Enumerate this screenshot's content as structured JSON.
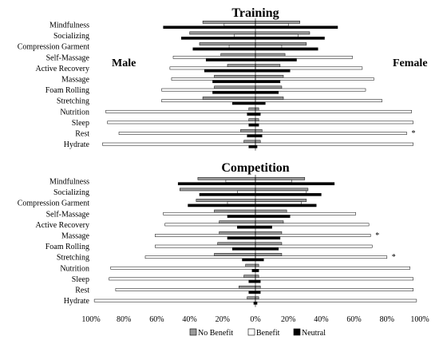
{
  "legend": {
    "no_benefit": "No Benefit",
    "benefit": "Benefit",
    "neutral": "Neutral"
  },
  "colors": {
    "no_benefit": "#9a9a9a",
    "benefit": "#ffffff",
    "neutral": "#000000",
    "outline": "#000000"
  },
  "chart_data": [
    {
      "type": "bar",
      "orientation": "horizontal-butterfly",
      "title": "Training",
      "left_label": "Male",
      "right_label": "Female",
      "categories": [
        "Mindfulness",
        "Socializing",
        "Compression Garment",
        "Self-Massage",
        "Active Recovery",
        "Massage",
        "Foam Rolling",
        "Stretching",
        "Nutrition",
        "Sleep",
        "Rest",
        "Hydrate"
      ],
      "xlim": [
        -100,
        100
      ],
      "series": [
        {
          "name": "No Benefit",
          "male": [
            32,
            40,
            34,
            21,
            17,
            25,
            25,
            32,
            4,
            4,
            9,
            7
          ],
          "female": [
            27,
            33,
            31,
            18,
            15,
            17,
            16,
            17,
            2,
            2,
            4,
            3
          ]
        },
        {
          "name": "Benefit",
          "male": [
            19,
            13,
            16,
            50,
            52,
            51,
            57,
            57,
            91,
            90,
            83,
            93
          ],
          "female": [
            20,
            26,
            16,
            59,
            65,
            72,
            67,
            77,
            95,
            96,
            92,
            96
          ]
        },
        {
          "name": "Neutral",
          "male": [
            56,
            45,
            38,
            30,
            31,
            26,
            26,
            14,
            5,
            4,
            5,
            4
          ],
          "female": [
            50,
            42,
            38,
            25,
            21,
            15,
            14,
            6,
            3,
            2,
            4,
            1
          ]
        }
      ],
      "significant": [
        false,
        false,
        false,
        false,
        false,
        false,
        false,
        false,
        false,
        false,
        true,
        false
      ]
    },
    {
      "type": "bar",
      "orientation": "horizontal-butterfly",
      "title": "Competition",
      "categories": [
        "Mindfulness",
        "Socializing",
        "Compression Garment",
        "Self-Massage",
        "Active Recovery",
        "Massage",
        "Foam Rolling",
        "Stretching",
        "Nutrition",
        "Sleep",
        "Rest",
        "Hydrate"
      ],
      "xlim": [
        -100,
        100
      ],
      "x_ticks": [
        "100%",
        "80%",
        "60%",
        "40%",
        "20%",
        "0%",
        "20%",
        "40%",
        "60%",
        "80%",
        "100%"
      ],
      "series": [
        {
          "name": "No Benefit",
          "male": [
            35,
            46,
            36,
            25,
            22,
            22,
            23,
            25,
            6,
            7,
            10,
            5
          ],
          "female": [
            30,
            32,
            31,
            19,
            17,
            16,
            16,
            16,
            2,
            2,
            3,
            2
          ]
        },
        {
          "name": "Benefit",
          "male": [
            18,
            11,
            17,
            56,
            55,
            61,
            61,
            67,
            88,
            89,
            85,
            98
          ],
          "female": [
            22,
            31,
            28,
            61,
            69,
            70,
            71,
            80,
            94,
            96,
            96,
            98
          ]
        },
        {
          "name": "Neutral",
          "male": [
            47,
            34,
            41,
            17,
            11,
            17,
            14,
            8,
            2,
            4,
            4,
            1
          ],
          "female": [
            48,
            40,
            37,
            21,
            10,
            15,
            14,
            5,
            2,
            3,
            3,
            1
          ]
        }
      ],
      "significant": [
        false,
        false,
        false,
        false,
        false,
        true,
        false,
        true,
        false,
        false,
        false,
        false
      ]
    }
  ]
}
